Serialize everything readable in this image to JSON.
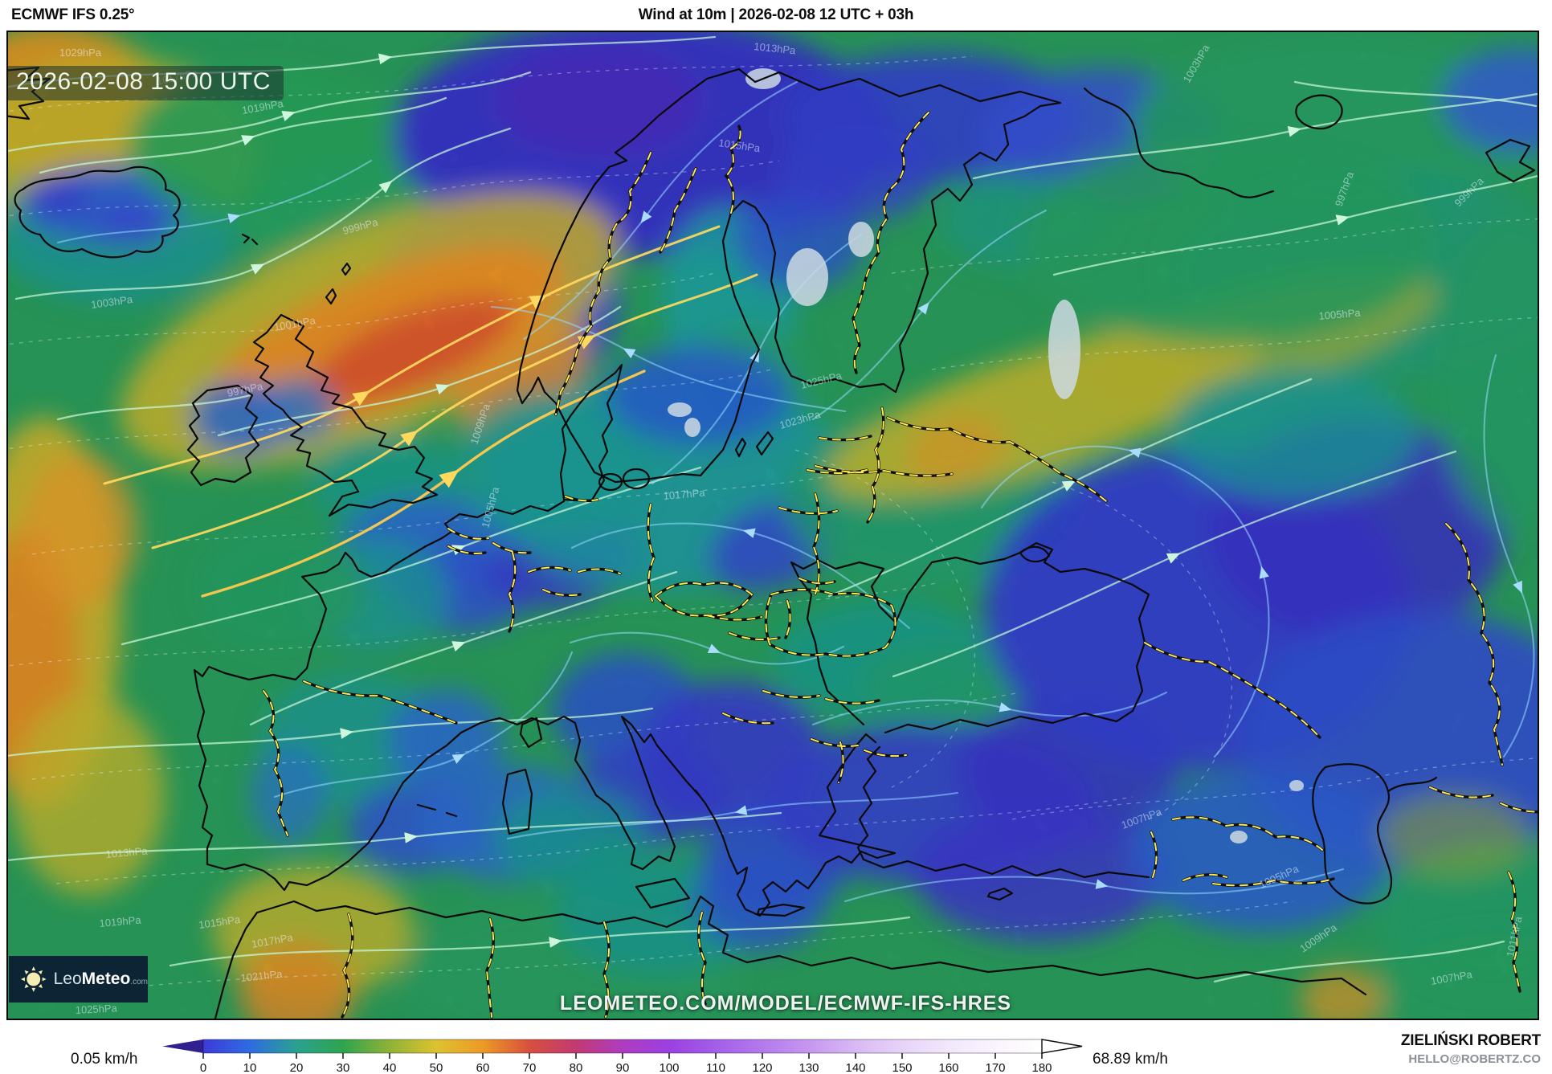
{
  "header": {
    "model_label": "ECMWF IFS 0.25°",
    "title": "Wind at 10m | 2026-02-08 12 UTC + 03h"
  },
  "map": {
    "timestamp": "2026-02-08 15:00 UTC",
    "watermark": "LEOMETEO.COM/MODEL/ECMWF-IFS-HRES",
    "isobar_labels": [
      "1029hPa",
      "1013hPa",
      "1015hPa",
      "1017hPa",
      "1019hPa",
      "1003hPa",
      "1001hPa",
      "997hPa",
      "1009hPa",
      "1005hPa",
      "1025hPa",
      "1023hPa",
      "1013hPa",
      "1015hPa",
      "1017hPa",
      "1019hPa",
      "1021hPa",
      "1025hPa",
      "1005hPa",
      "1007hPa",
      "1009hPa",
      "1011hPa",
      "1007hPa",
      "1017hPa",
      "997hPa",
      "999hPa",
      "1003hPa",
      "1005hPa",
      "999hPa"
    ]
  },
  "logo": {
    "name_regular": "Leo",
    "name_bold": "Meteo",
    "tld": ".com"
  },
  "legend": {
    "min_label": "0.05 km/h",
    "max_label": "68.89 km/h",
    "unit": "km/h",
    "ticks": [
      "0",
      "10",
      "20",
      "30",
      "40",
      "50",
      "60",
      "70",
      "80",
      "90",
      "100",
      "110",
      "120",
      "130",
      "140",
      "150",
      "160",
      "170",
      "180"
    ],
    "colors": [
      "#3c3bda",
      "#2f6be2",
      "#2aa191",
      "#2ea44e",
      "#8fb237",
      "#ddc22e",
      "#ec9a26",
      "#d84f3e",
      "#c23a72",
      "#ae3cc0",
      "#9b40e2",
      "#a45ee8",
      "#b37aec",
      "#c697f0",
      "#d8b9f4",
      "#e7d4f8",
      "#f2e7fb",
      "#faf4fe",
      "#ffffff"
    ],
    "arrow_color": "#31208f"
  },
  "credits": {
    "name": "ZIELIŃSKI ROBERT",
    "email": "HELLO@ROBERTZ.CO"
  }
}
